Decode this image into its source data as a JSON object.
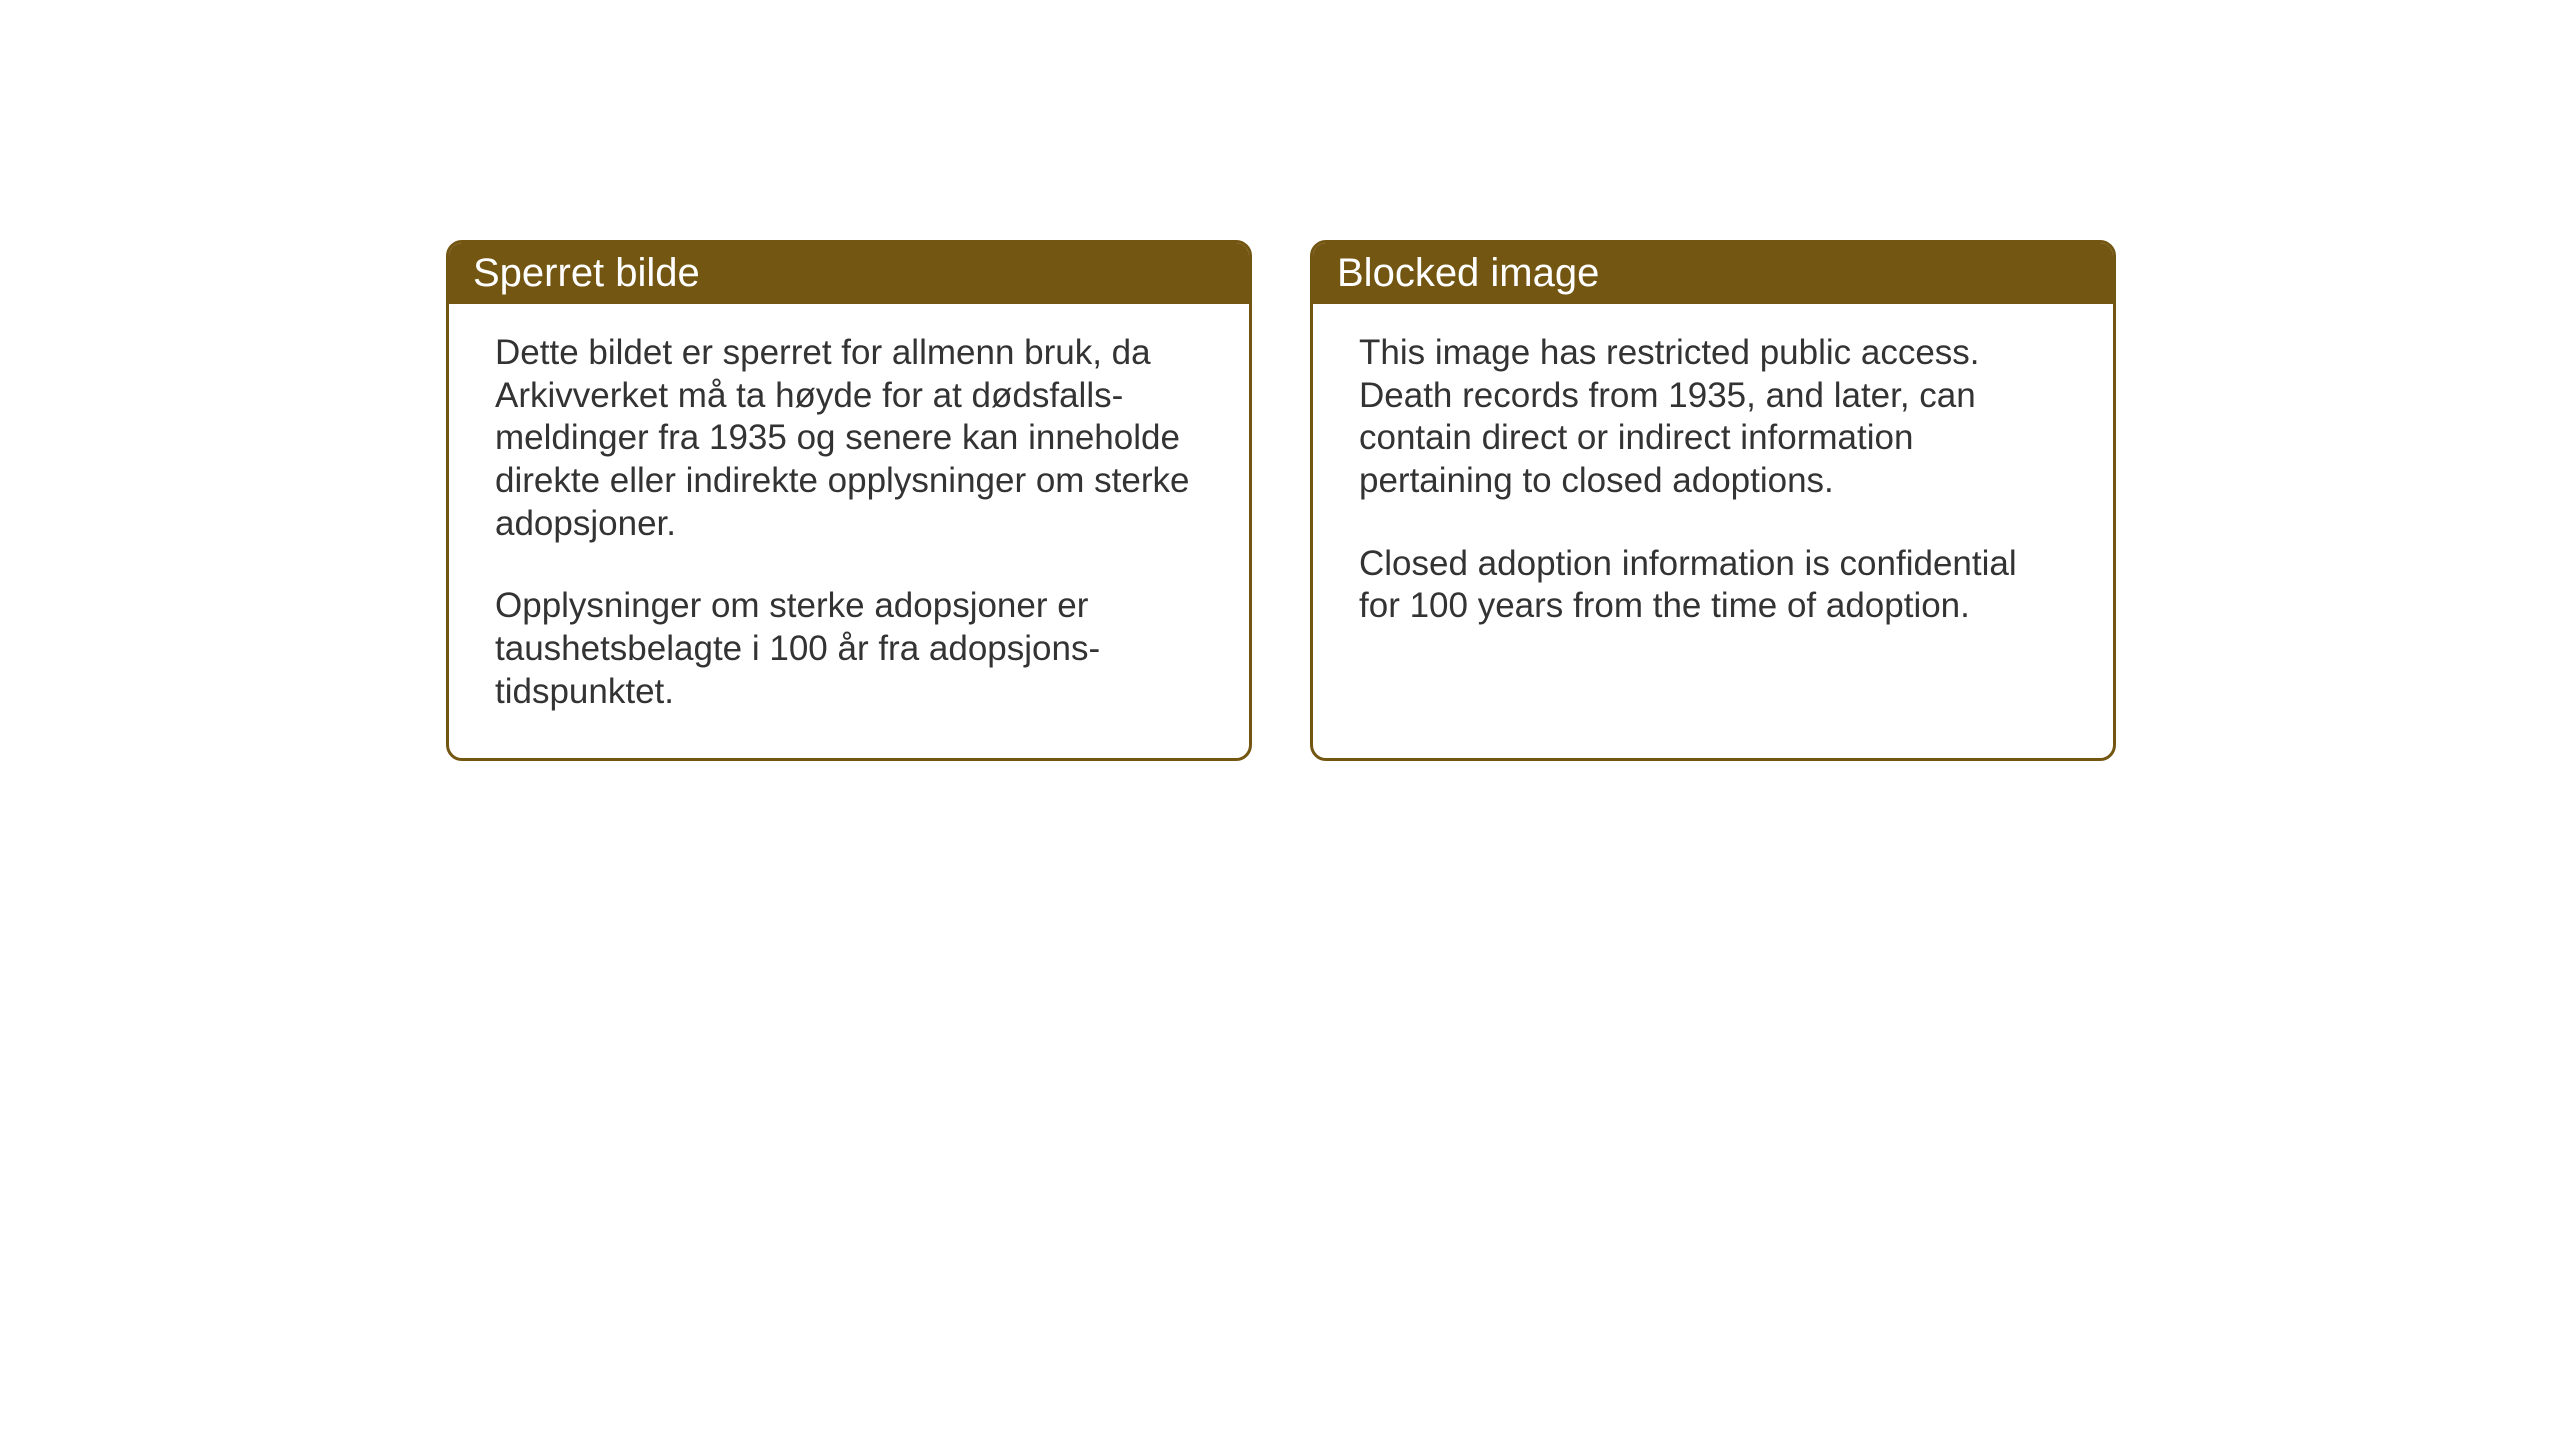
{
  "layout": {
    "background_color": "#ffffff",
    "card_border_color": "#735612",
    "card_header_bg": "#735612",
    "card_header_text_color": "#ffffff",
    "card_body_text_color": "#333333",
    "card_border_radius": 16,
    "card_border_width": 3,
    "header_fontsize": 40,
    "body_fontsize": 35
  },
  "cards": [
    {
      "title": "Sperret bilde",
      "paragraphs": [
        "Dette bildet er sperret for allmenn bruk, da Arkivverket må ta høyde for at dødsfalls-meldinger fra 1935 og senere kan inneholde direkte eller indirekte opplysninger om sterke adopsjoner.",
        "Opplysninger om sterke adopsjoner er taushetsbelagte i 100 år fra adopsjons-tidspunktet."
      ]
    },
    {
      "title": "Blocked image",
      "paragraphs": [
        "This image has restricted public access. Death records from 1935, and later, can contain direct or indirect information pertaining to closed adoptions.",
        "Closed adoption information is confidential for 100 years from the time of adoption."
      ]
    }
  ]
}
